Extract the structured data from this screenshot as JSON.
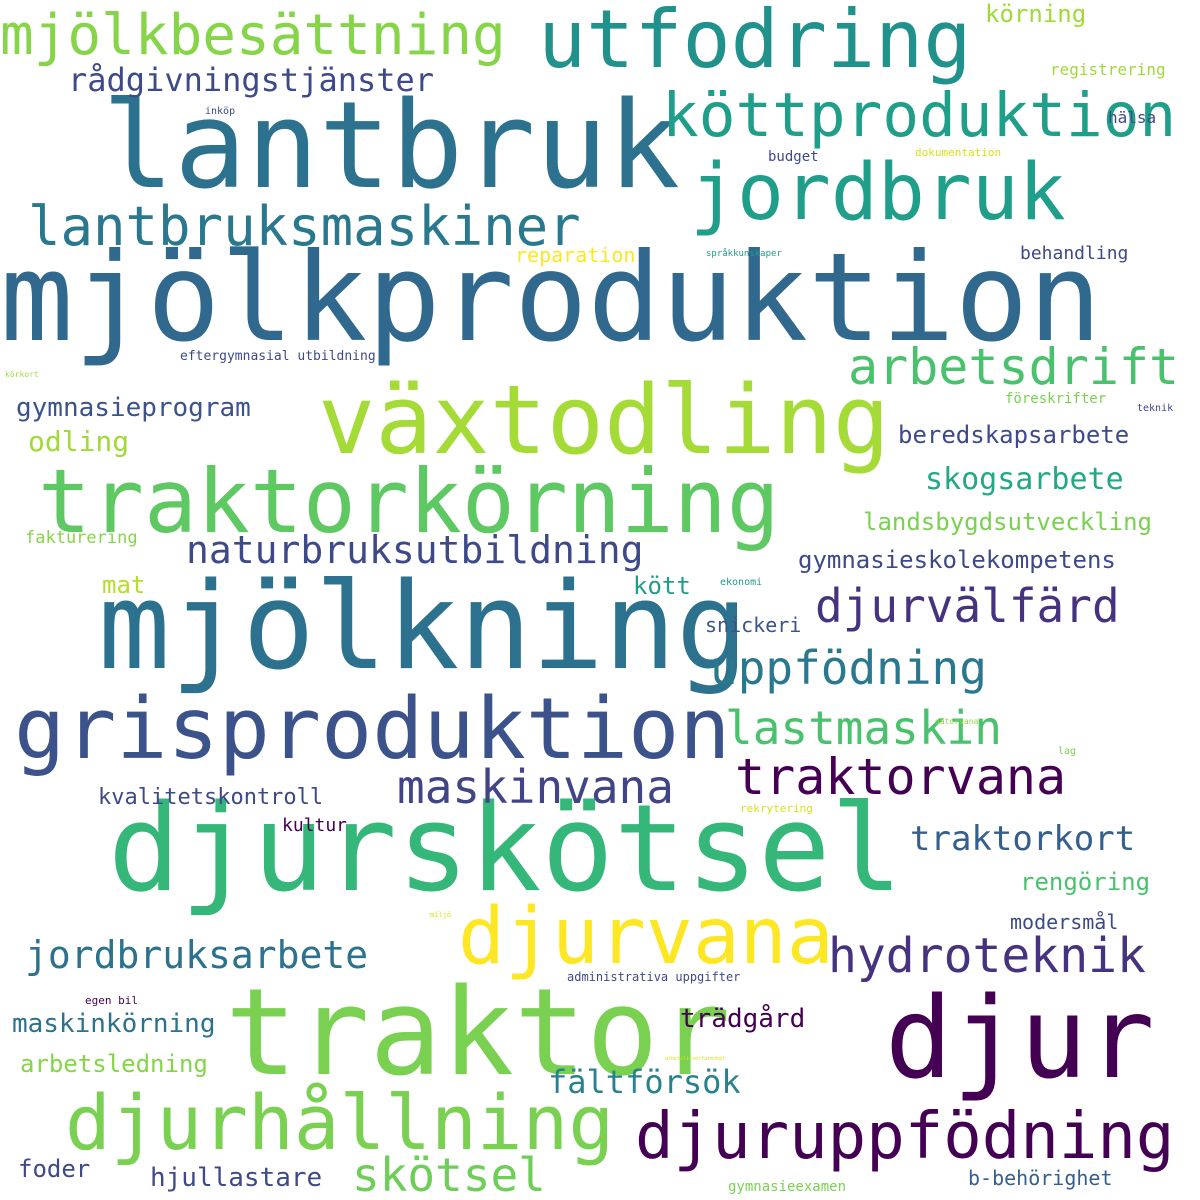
{
  "words": [
    {
      "text": "mjölkproduktion",
      "color": "#31688e"
    },
    {
      "text": "djurskötsel",
      "color": "#35b779"
    },
    {
      "text": "lantbruk",
      "color": "#2c728e"
    },
    {
      "text": "mjölkning",
      "color": "#2c728e"
    },
    {
      "text": "traktor",
      "color": "#7ad151"
    },
    {
      "text": "djur",
      "color": "#440154"
    },
    {
      "text": "växtodling",
      "color": "#a5db36"
    },
    {
      "text": "traktorkörning",
      "color": "#5ec962"
    },
    {
      "text": "grisproduktion",
      "color": "#3b528b"
    },
    {
      "text": "utfodring",
      "color": "#21918c"
    },
    {
      "text": "jordbruk",
      "color": "#1f9e89"
    },
    {
      "text": "djurvana",
      "color": "#fde725"
    },
    {
      "text": "djurhållning",
      "color": "#7ad151"
    },
    {
      "text": "djuruppfödning",
      "color": "#440154"
    },
    {
      "text": "köttproduktion",
      "color": "#1f9e89"
    },
    {
      "text": "mjölkbesättning",
      "color": "#86d549"
    },
    {
      "text": "lantbruksmaskiner",
      "color": "#2a788e"
    },
    {
      "text": "arbetsdrift",
      "color": "#4ac16d"
    },
    {
      "text": "traktorvana",
      "color": "#440154"
    },
    {
      "text": "hydroteknik",
      "color": "#46327e"
    },
    {
      "text": "djurvälfärd",
      "color": "#46327e"
    },
    {
      "text": "uppfödning",
      "color": "#2a788e"
    },
    {
      "text": "lastmaskin",
      "color": "#4ac16d"
    },
    {
      "text": "maskinvana",
      "color": "#414487"
    },
    {
      "text": "skötsel",
      "color": "#6ece58"
    },
    {
      "text": "naturbruksutbildning",
      "color": "#3e4989"
    },
    {
      "text": "rådgivningstjänster",
      "color": "#3e4989"
    },
    {
      "text": "jordbruksarbete",
      "color": "#2c728e"
    },
    {
      "text": "fältförsök",
      "color": "#26828e"
    },
    {
      "text": "traktorkort",
      "color": "#355f8d"
    },
    {
      "text": "skogsarbete",
      "color": "#22a884"
    },
    {
      "text": "beredskapsarbete",
      "color": "#3e4a89"
    },
    {
      "text": "gymnasieskolekompetens",
      "color": "#3e4989"
    },
    {
      "text": "landsbygdsutveckling",
      "color": "#7ad151"
    },
    {
      "text": "gymnasieprogram",
      "color": "#3b528b"
    },
    {
      "text": "maskinkörning",
      "color": "#2c728e"
    },
    {
      "text": "trädgård",
      "color": "#440154"
    },
    {
      "text": "hjullastare",
      "color": "#3e4989"
    },
    {
      "text": "arbetsledning",
      "color": "#86d549"
    },
    {
      "text": "rengöring",
      "color": "#4ac16d"
    },
    {
      "text": "kvalitetskontroll",
      "color": "#3e4989"
    },
    {
      "text": "odling",
      "color": "#a0da39"
    },
    {
      "text": "mat",
      "color": "#b5de2b"
    },
    {
      "text": "kött",
      "color": "#1f9e89"
    },
    {
      "text": "foder",
      "color": "#3e4989"
    },
    {
      "text": "körning",
      "color": "#a0da39"
    },
    {
      "text": "snickeri",
      "color": "#3b528b"
    },
    {
      "text": "modersmål",
      "color": "#3e4989"
    },
    {
      "text": "b-behörighet",
      "color": "#355f8d"
    },
    {
      "text": "kultur",
      "color": "#440154"
    },
    {
      "text": "reparation",
      "color": "#fde725"
    },
    {
      "text": "behandling",
      "color": "#3e4989"
    },
    {
      "text": "fakturering",
      "color": "#86d549"
    },
    {
      "text": "registrering",
      "color": "#a0da39"
    },
    {
      "text": "hälsa",
      "color": "#3e4989"
    },
    {
      "text": "budget",
      "color": "#3e4989"
    },
    {
      "text": "föreskrifter",
      "color": "#7ad151"
    },
    {
      "text": "eftergymnasial utbildning",
      "color": "#3e4989"
    },
    {
      "text": "administrativa uppgifter",
      "color": "#3e4989"
    },
    {
      "text": "gymnasieexamen",
      "color": "#7ad151"
    },
    {
      "text": "rekrytering",
      "color": "#d8e219"
    },
    {
      "text": "dokumentation",
      "color": "#d8e219"
    },
    {
      "text": "egen bil",
      "color": "#440154"
    },
    {
      "text": "inköp",
      "color": "#3e4989"
    },
    {
      "text": "teknik",
      "color": "#3e4989"
    },
    {
      "text": "ekonomi",
      "color": "#1f9e89"
    },
    {
      "text": "språkkunskaper",
      "color": "#1f9e89"
    },
    {
      "text": "lag",
      "color": "#7ad151"
    },
    {
      "text": "datorvana",
      "color": "#8fd744"
    },
    {
      "text": "körkort",
      "color": "#a0da39"
    },
    {
      "text": "miljö",
      "color": "#d8e219"
    },
    {
      "text": "arbetslivserfarenhet",
      "color": "#d8e219"
    }
  ]
}
